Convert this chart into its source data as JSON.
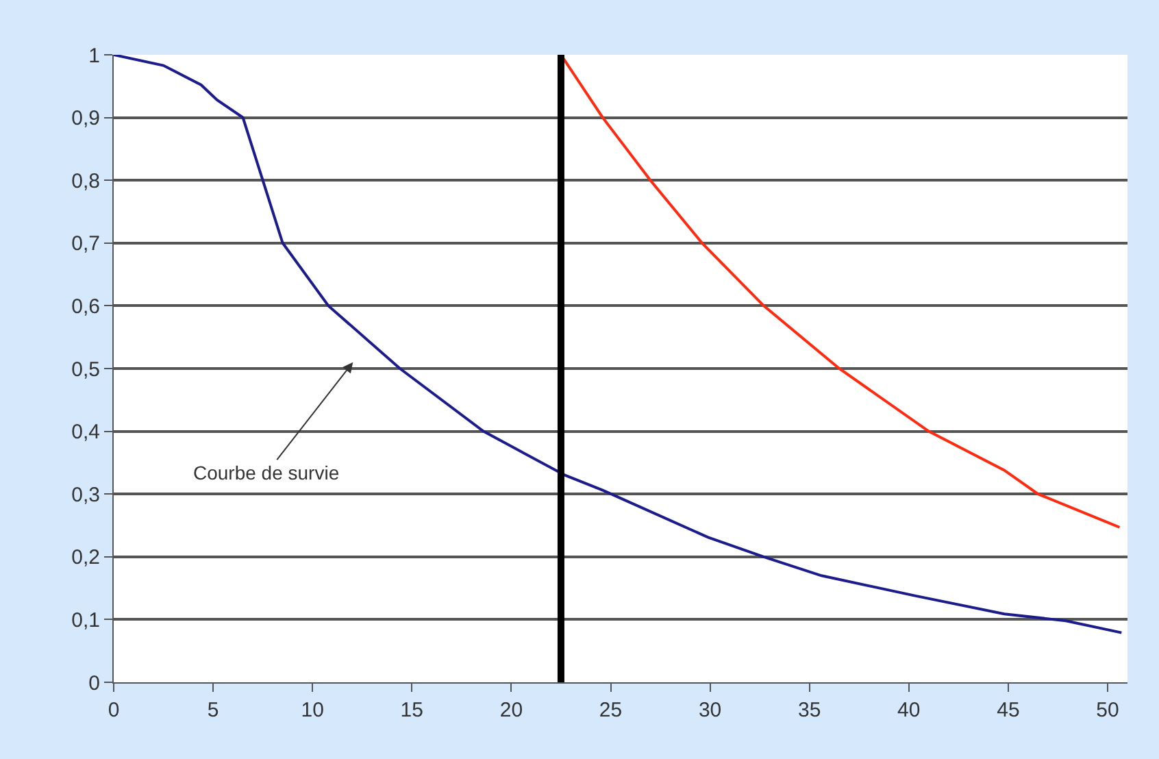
{
  "chart_data": {
    "type": "line",
    "series": [
      {
        "color": "#1c1c8c",
        "x": [
          0,
          2.5,
          4.4,
          5.2,
          6.5,
          7.5,
          8.5,
          10.8,
          14.4,
          18.6,
          22.7,
          24.6,
          29.9,
          32.7,
          35.6,
          40.3,
          44.8,
          47.9,
          50.7
        ],
        "values": [
          1,
          0.983,
          0.952,
          0.928,
          0.9,
          0.8,
          0.7,
          0.6,
          0.5,
          0.4,
          0.33,
          0.306,
          0.231,
          0.2,
          0.17,
          0.138,
          0.109,
          0.098,
          0.079
        ]
      },
      {
        "color": "#ff2a10",
        "x": [
          22.5,
          24.6,
          27.0,
          29.6,
          32.7,
          36.5,
          41.0,
          44.8,
          46.5,
          50.6
        ],
        "values": [
          1,
          0.9,
          0.8,
          0.7,
          0.6,
          0.5,
          0.4,
          0.338,
          0.3,
          0.247
        ]
      }
    ],
    "xlim": [
      0,
      51
    ],
    "ylim": [
      0,
      1
    ],
    "xticks": [
      0,
      5,
      10,
      15,
      20,
      25,
      30,
      35,
      40,
      45,
      50
    ],
    "yticks": [
      0,
      {
        "value": 0.1,
        "label": "0,1"
      },
      {
        "value": 0.2,
        "label": "0,2"
      },
      {
        "value": 0.3,
        "label": "0,3"
      },
      {
        "value": 0.4,
        "label": "0,4"
      },
      {
        "value": 0.5,
        "label": "0,5"
      },
      {
        "value": 0.6,
        "label": "0,6"
      },
      {
        "value": 0.7,
        "label": "0,7"
      },
      {
        "value": 0.8,
        "label": "0,8"
      },
      {
        "value": 0.9,
        "label": "0,9"
      },
      1
    ],
    "grid": "y",
    "marker": "none",
    "line_style": "solid",
    "ref_lines": [
      {
        "axis": "x",
        "value": 22.5,
        "color": "#000000"
      }
    ],
    "annotations": [
      "Courbe de survie"
    ]
  }
}
